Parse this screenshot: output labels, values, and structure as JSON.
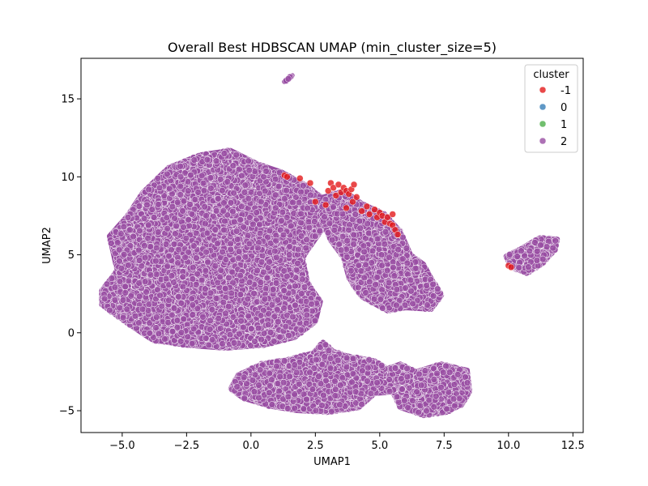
{
  "chart_data": {
    "type": "scatter",
    "title": "Overall Best HDBSCAN UMAP (min_cluster_size=5)",
    "xlabel": "UMAP1",
    "ylabel": "UMAP2",
    "xlim": [
      -6.6,
      12.9
    ],
    "ylim": [
      -6.4,
      17.6
    ],
    "x_ticks": [
      -5.0,
      -2.5,
      0.0,
      2.5,
      5.0,
      7.5,
      10.0,
      12.5
    ],
    "x_tick_labels": [
      "−5.0",
      "−2.5",
      "0.0",
      "2.5",
      "5.0",
      "7.5",
      "10.0",
      "12.5"
    ],
    "y_ticks": [
      -5,
      0,
      5,
      10,
      15
    ],
    "y_tick_labels": [
      "−5",
      "0",
      "5",
      "10",
      "15"
    ],
    "grid": false,
    "legend": {
      "title": "cluster",
      "placement": "top-right",
      "entries": [
        {
          "label": "-1",
          "color": "#e41a1c"
        },
        {
          "label": "0",
          "color": "#377eb8"
        },
        {
          "label": "1",
          "color": "#4daf4a"
        },
        {
          "label": "2",
          "color": "#984ea3"
        }
      ]
    },
    "series": [
      {
        "name": "2",
        "color": "#984ea3",
        "regions": [
          {
            "polygon": [
              [
                -5.8,
                2.7
              ],
              [
                -5.2,
                4.0
              ],
              [
                -5.5,
                6.2
              ],
              [
                -4.8,
                7.5
              ],
              [
                -4.2,
                9.0
              ],
              [
                -3.2,
                10.6
              ],
              [
                -2.0,
                11.4
              ],
              [
                -0.8,
                11.7
              ],
              [
                0.3,
                10.8
              ],
              [
                1.2,
                10.3
              ],
              [
                2.2,
                9.4
              ],
              [
                2.8,
                8.6
              ],
              [
                3.2,
                7.6
              ],
              [
                2.5,
                6.0
              ],
              [
                2.0,
                4.8
              ],
              [
                2.2,
                3.2
              ],
              [
                2.7,
                2.0
              ],
              [
                2.5,
                0.7
              ],
              [
                1.7,
                -0.3
              ],
              [
                0.5,
                -0.8
              ],
              [
                -1.0,
                -1.0
              ],
              [
                -2.5,
                -0.8
              ],
              [
                -3.8,
                -0.5
              ],
              [
                -4.8,
                0.6
              ],
              [
                -5.8,
                1.8
              ]
            ],
            "count": 5200
          },
          {
            "polygon": [
              [
                2.8,
                8.7
              ],
              [
                3.6,
                9.1
              ],
              [
                4.3,
                8.3
              ],
              [
                5.2,
                7.6
              ],
              [
                5.8,
                6.5
              ],
              [
                6.2,
                5.0
              ],
              [
                6.7,
                4.4
              ],
              [
                7.0,
                3.5
              ],
              [
                7.4,
                2.4
              ],
              [
                7.0,
                1.5
              ],
              [
                6.0,
                1.6
              ],
              [
                5.3,
                1.4
              ],
              [
                4.3,
                2.3
              ],
              [
                3.8,
                3.5
              ],
              [
                3.6,
                4.8
              ],
              [
                3.1,
                5.9
              ],
              [
                2.7,
                7.4
              ]
            ],
            "count": 1500
          },
          {
            "polygon": [
              [
                -0.8,
                -3.6
              ],
              [
                -0.5,
                -2.7
              ],
              [
                0.4,
                -2.0
              ],
              [
                1.5,
                -1.7
              ],
              [
                2.4,
                -1.3
              ],
              [
                2.8,
                -0.6
              ],
              [
                3.2,
                -1.2
              ],
              [
                3.8,
                -1.5
              ],
              [
                4.8,
                -1.8
              ],
              [
                5.3,
                -2.3
              ],
              [
                5.8,
                -2.0
              ],
              [
                6.4,
                -2.5
              ],
              [
                7.4,
                -2.0
              ],
              [
                8.4,
                -2.4
              ],
              [
                8.5,
                -3.8
              ],
              [
                8.2,
                -4.6
              ],
              [
                7.6,
                -5.1
              ],
              [
                6.7,
                -5.3
              ],
              [
                5.8,
                -4.8
              ],
              [
                5.5,
                -3.8
              ],
              [
                4.8,
                -3.9
              ],
              [
                4.2,
                -4.8
              ],
              [
                3.0,
                -5.1
              ],
              [
                1.8,
                -5.0
              ],
              [
                0.7,
                -4.7
              ],
              [
                -0.3,
                -4.2
              ]
            ],
            "count": 2600
          },
          {
            "polygon": [
              [
                9.9,
                4.9
              ],
              [
                10.6,
                5.5
              ],
              [
                11.2,
                6.1
              ],
              [
                11.9,
                6.0
              ],
              [
                11.8,
                5.3
              ],
              [
                11.3,
                4.4
              ],
              [
                10.7,
                3.8
              ],
              [
                10.1,
                4.2
              ]
            ],
            "count": 420
          },
          {
            "polygon": [
              [
                1.3,
                16.1
              ],
              [
                1.5,
                16.4
              ],
              [
                1.6,
                16.5
              ],
              [
                1.4,
                16.2
              ]
            ],
            "count": 5
          }
        ]
      },
      {
        "name": "-1",
        "color": "#e41a1c",
        "points": [
          [
            1.3,
            10.1
          ],
          [
            1.4,
            10.0
          ],
          [
            1.9,
            9.9
          ],
          [
            2.3,
            9.6
          ],
          [
            2.5,
            8.4
          ],
          [
            2.9,
            8.2
          ],
          [
            3.0,
            9.1
          ],
          [
            3.1,
            9.6
          ],
          [
            3.2,
            9.3
          ],
          [
            3.3,
            8.8
          ],
          [
            3.4,
            9.5
          ],
          [
            3.5,
            9.0
          ],
          [
            3.6,
            9.3
          ],
          [
            3.7,
            9.1
          ],
          [
            3.8,
            8.9
          ],
          [
            3.9,
            9.2
          ],
          [
            4.0,
            9.5
          ],
          [
            3.95,
            8.4
          ],
          [
            4.1,
            8.7
          ],
          [
            3.7,
            8.0
          ],
          [
            4.3,
            7.8
          ],
          [
            4.5,
            8.1
          ],
          [
            4.6,
            7.6
          ],
          [
            4.8,
            7.9
          ],
          [
            4.9,
            7.4
          ],
          [
            5.0,
            7.7
          ],
          [
            5.1,
            7.5
          ],
          [
            5.2,
            7.1
          ],
          [
            5.3,
            7.4
          ],
          [
            5.4,
            7.0
          ],
          [
            5.5,
            7.6
          ],
          [
            5.5,
            6.9
          ],
          [
            5.6,
            6.6
          ],
          [
            5.7,
            6.3
          ],
          [
            10.0,
            4.3
          ],
          [
            10.1,
            4.2
          ]
        ]
      }
    ]
  }
}
